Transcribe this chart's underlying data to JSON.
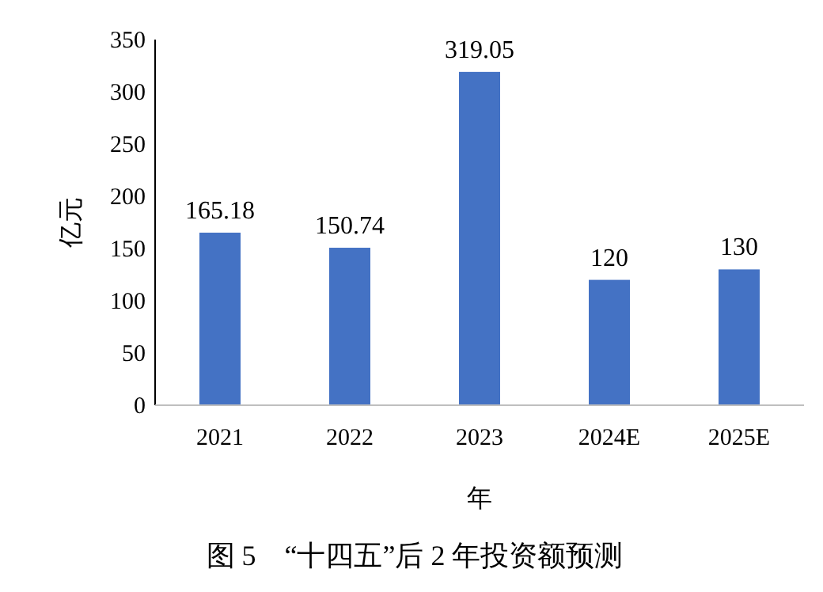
{
  "chart_data": {
    "type": "bar",
    "title": "图 5　“十四五”后 2 年投资额预测",
    "xlabel": "年",
    "ylabel": "亿元",
    "categories": [
      "2021",
      "2022",
      "2023",
      "2024E",
      "2025E"
    ],
    "values": [
      165.18,
      150.74,
      319.05,
      120,
      130
    ],
    "color": "#4472c4",
    "data_labels": true,
    "grid": false,
    "ylim": [
      0,
      350
    ],
    "yticks": [
      0,
      50,
      100,
      150,
      200,
      250,
      300,
      350
    ]
  }
}
